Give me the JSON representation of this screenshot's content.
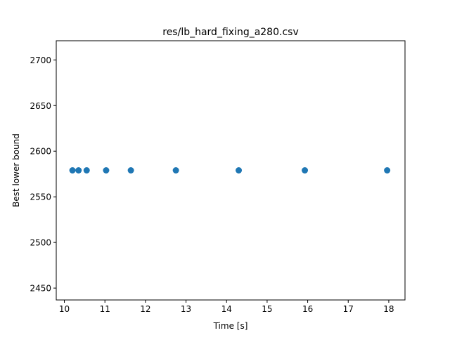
{
  "chart_data": {
    "type": "scatter",
    "title": "res/lb_hard_fixing_a280.csv",
    "xlabel": "Time [s]",
    "ylabel": "Best lower bound",
    "xlim": [
      9.8,
      18.4
    ],
    "ylim": [
      2437,
      2721
    ],
    "xticks": [
      10,
      11,
      12,
      13,
      14,
      15,
      16,
      17,
      18
    ],
    "yticks": [
      2450,
      2500,
      2550,
      2600,
      2650,
      2700
    ],
    "grid": false,
    "marker_color": "#1f77b4",
    "series": [
      {
        "x": [
          10.2,
          10.35,
          10.55,
          11.03,
          11.64,
          12.75,
          14.3,
          15.93,
          17.96
        ],
        "y": [
          2579,
          2579,
          2579,
          2579,
          2579,
          2579,
          2579,
          2579,
          2579
        ]
      }
    ]
  }
}
